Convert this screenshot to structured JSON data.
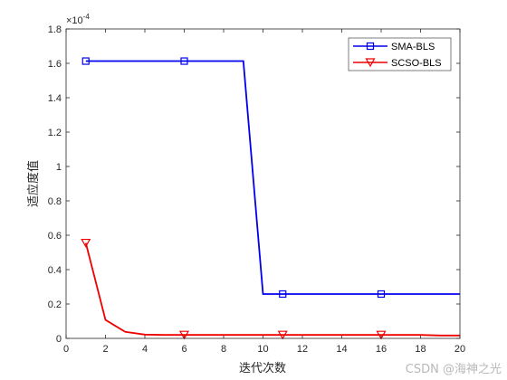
{
  "chart_data": {
    "type": "line",
    "title": "",
    "xlabel": "迭代次数",
    "ylabel": "适应度值",
    "y_exponent_label": "×10",
    "y_exponent_power": "-4",
    "xlim": [
      0,
      20
    ],
    "ylim": [
      0,
      1.8
    ],
    "x_ticks": [
      0,
      2,
      4,
      6,
      8,
      10,
      12,
      14,
      16,
      18,
      20
    ],
    "x_tick_labels": [
      "0",
      "2",
      "4",
      "6",
      "8",
      "10",
      "12",
      "14",
      "16",
      "18",
      "20"
    ],
    "y_ticks": [
      0,
      0.2,
      0.4,
      0.6,
      0.8,
      1,
      1.2,
      1.4,
      1.6,
      1.8
    ],
    "y_tick_labels": [
      "0",
      "0.2",
      "0.4",
      "0.6",
      "0.8",
      "1",
      "1.2",
      "1.4",
      "1.6",
      "1.8"
    ],
    "grid": false,
    "legend_position": "top-right",
    "series": [
      {
        "name": "SMA-BLS",
        "color": "#0000ee",
        "marker": "square",
        "x": [
          1,
          2,
          3,
          4,
          5,
          6,
          7,
          8,
          9,
          10,
          11,
          12,
          13,
          14,
          15,
          16,
          17,
          18,
          19,
          20
        ],
        "values": [
          1.613,
          1.613,
          1.613,
          1.613,
          1.613,
          1.613,
          1.613,
          1.613,
          1.613,
          0.258,
          0.258,
          0.258,
          0.258,
          0.258,
          0.258,
          0.258,
          0.258,
          0.258,
          0.258,
          0.258
        ],
        "marker_x": [
          1,
          6,
          11,
          16
        ]
      },
      {
        "name": "SCSO-BLS",
        "color": "#ee0000",
        "marker": "triangle-down",
        "x": [
          1,
          2,
          3,
          4,
          5,
          6,
          7,
          8,
          9,
          10,
          11,
          12,
          13,
          14,
          15,
          16,
          17,
          18,
          19,
          20
        ],
        "values": [
          0.555,
          0.108,
          0.038,
          0.022,
          0.02,
          0.02,
          0.02,
          0.02,
          0.02,
          0.02,
          0.02,
          0.02,
          0.02,
          0.02,
          0.02,
          0.02,
          0.02,
          0.02,
          0.017,
          0.017
        ],
        "marker_x": [
          1,
          6,
          11,
          16
        ]
      }
    ]
  },
  "watermark": "CSDN @海神之光"
}
